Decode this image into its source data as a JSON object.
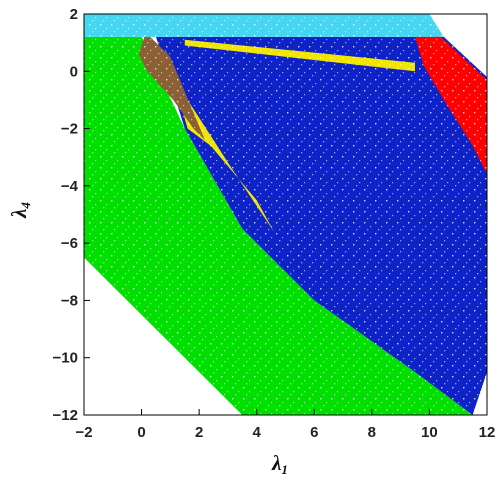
{
  "chart_data": {
    "type": "scatter",
    "title": "",
    "xlabel": "λ",
    "xlabel_sub": "1",
    "ylabel": "λ",
    "ylabel_sub": "4",
    "xlim": [
      -2,
      12
    ],
    "ylim": [
      -12,
      2
    ],
    "xticks": [
      -2,
      0,
      2,
      4,
      6,
      8,
      10,
      12
    ],
    "yticks": [
      -12,
      -10,
      -8,
      -6,
      -4,
      -2,
      0,
      2
    ],
    "grid": false,
    "legend": "none",
    "series": [
      {
        "color": "#00e000",
        "region": [
          [
            -2,
            1.2
          ],
          [
            0,
            1.2
          ],
          [
            1.5,
            -2
          ],
          [
            3.5,
            -5.5
          ],
          [
            6,
            -8
          ],
          [
            9.5,
            -10.5
          ],
          [
            11.5,
            -12
          ],
          [
            3.5,
            -12
          ],
          [
            -2,
            -6.5
          ]
        ]
      },
      {
        "color": "#0d22c7",
        "region": [
          [
            0.5,
            1.2
          ],
          [
            10.5,
            1.2
          ],
          [
            12,
            -0.2
          ],
          [
            12,
            -10.5
          ],
          [
            11.5,
            -12
          ],
          [
            9.5,
            -10.5
          ],
          [
            6,
            -8
          ],
          [
            3.5,
            -5.5
          ],
          [
            1.5,
            -2
          ]
        ]
      },
      {
        "color": "#45d6f2",
        "region": [
          [
            -2,
            2
          ],
          [
            10,
            2
          ],
          [
            10.5,
            1.2
          ],
          [
            -2,
            1.2
          ]
        ]
      },
      {
        "color": "#f2e600",
        "region": [
          [
            0.8,
            0.8
          ],
          [
            1.6,
            -1
          ],
          [
            3.2,
            -3.5
          ],
          [
            4.6,
            -5.6
          ],
          [
            4,
            -4.5
          ],
          [
            2.4,
            -2.6
          ],
          [
            1.6,
            -2
          ]
        ]
      },
      {
        "color": "#f2e600",
        "region": [
          [
            1.5,
            1.1
          ],
          [
            9.5,
            0.3
          ],
          [
            9.5,
            0.0
          ],
          [
            1.5,
            0.9
          ]
        ]
      },
      {
        "color": "#8a6034",
        "region": [
          [
            0.1,
            1.2
          ],
          [
            0.3,
            1.2
          ],
          [
            1.0,
            0.5
          ],
          [
            2.2,
            -2.4
          ],
          [
            1.8,
            -2.0
          ],
          [
            1.1,
            -1.0
          ],
          [
            0.2,
            0.0
          ],
          [
            -0.1,
            0.6
          ]
        ]
      },
      {
        "color": "#ff0000",
        "region": [
          [
            9.5,
            1.2
          ],
          [
            10.4,
            1.2
          ],
          [
            12,
            -0.3
          ],
          [
            12,
            -3.6
          ],
          [
            11.5,
            -2.6
          ],
          [
            10.5,
            -1.0
          ],
          [
            9.8,
            0.2
          ]
        ]
      }
    ]
  }
}
